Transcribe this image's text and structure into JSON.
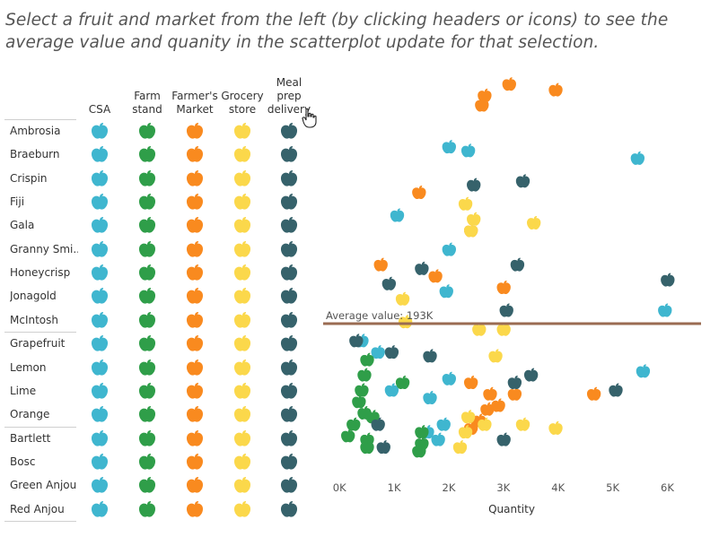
{
  "instructions": "Select a fruit and market from the left (by clicking  headers or icons) to see the average value and quanity in the scatterplot update for that selection.",
  "markets": [
    {
      "label": "CSA",
      "color": "#3fb6cf"
    },
    {
      "label": "Farm\nstand",
      "color": "#2f9e49"
    },
    {
      "label": "Farmer's\nMarket",
      "color": "#f98a1f"
    },
    {
      "label": "Grocery\nstore",
      "color": "#fbd84b"
    },
    {
      "label": "Meal\nprep\ndelivery",
      "color": "#36626b"
    }
  ],
  "fruits": [
    "Ambrosia",
    "Braeburn",
    "Crispin",
    "Fiji",
    "Gala",
    "Granny Smi..",
    "Honeycrisp",
    "Jonagold",
    "McIntosh",
    "Grapefruit",
    "Lemon",
    "Lime",
    "Orange",
    "Bartlett",
    "Bosc",
    "Green Anjou",
    "Red Anjou"
  ],
  "chart_data": {
    "type": "scatter",
    "xlabel": "Quantity",
    "x_ticks": [
      "0K",
      "1K",
      "2K",
      "3K",
      "4K",
      "5K",
      "6K"
    ],
    "xlim": [
      -250,
      6600
    ],
    "ylim": [
      0,
      1
    ],
    "reference_line": {
      "label": "Average value: 193K",
      "color": "#9a6b52"
    },
    "series": [
      {
        "color": "#f98a1f",
        "points": [
          [
            2650,
            0.955
          ],
          [
            3100,
            0.985
          ],
          [
            3950,
            0.97
          ],
          [
            2600,
            0.93
          ],
          [
            1450,
            0.7
          ],
          [
            2400,
            0.6
          ],
          [
            750,
            0.51
          ],
          [
            1750,
            0.48
          ],
          [
            3000,
            0.45
          ],
          [
            2400,
            0.2
          ],
          [
            2750,
            0.17
          ],
          [
            3200,
            0.17
          ],
          [
            4650,
            0.17
          ],
          [
            2900,
            0.14
          ],
          [
            2700,
            0.13
          ],
          [
            2550,
            0.1
          ],
          [
            2400,
            0.08
          ]
        ]
      },
      {
        "color": "#3fb6cf",
        "points": [
          [
            2000,
            0.82
          ],
          [
            2350,
            0.81
          ],
          [
            5450,
            0.79
          ],
          [
            1050,
            0.64
          ],
          [
            2000,
            0.55
          ],
          [
            1950,
            0.44
          ],
          [
            950,
            0.18
          ],
          [
            1650,
            0.16
          ],
          [
            1900,
            0.09
          ],
          [
            1800,
            0.05
          ],
          [
            1600,
            0.07
          ],
          [
            5950,
            0.39
          ],
          [
            5550,
            0.23
          ],
          [
            400,
            0.31
          ],
          [
            2000,
            0.21
          ],
          [
            700,
            0.28
          ]
        ]
      },
      {
        "color": "#2f9e49",
        "points": [
          [
            500,
            0.26
          ],
          [
            450,
            0.22
          ],
          [
            400,
            0.18
          ],
          [
            350,
            0.15
          ],
          [
            450,
            0.12
          ],
          [
            250,
            0.09
          ],
          [
            500,
            0.05
          ],
          [
            500,
            0.03
          ],
          [
            1500,
            0.07
          ],
          [
            1500,
            0.04
          ],
          [
            1450,
            0.02
          ],
          [
            1150,
            0.2
          ],
          [
            150,
            0.06
          ],
          [
            600,
            0.11
          ]
        ]
      },
      {
        "color": "#fbd84b",
        "points": [
          [
            2300,
            0.67
          ],
          [
            2450,
            0.63
          ],
          [
            2400,
            0.6
          ],
          [
            3550,
            0.62
          ],
          [
            1150,
            0.42
          ],
          [
            2550,
            0.34
          ],
          [
            3000,
            0.34
          ],
          [
            2850,
            0.27
          ],
          [
            2350,
            0.11
          ],
          [
            2300,
            0.07
          ],
          [
            2650,
            0.09
          ],
          [
            3950,
            0.08
          ],
          [
            3350,
            0.09
          ],
          [
            2200,
            0.03
          ],
          [
            1200,
            0.36
          ]
        ]
      },
      {
        "color": "#36626b",
        "points": [
          [
            2450,
            0.72
          ],
          [
            3350,
            0.73
          ],
          [
            3250,
            0.51
          ],
          [
            6000,
            0.47
          ],
          [
            900,
            0.46
          ],
          [
            3050,
            0.39
          ],
          [
            950,
            0.28
          ],
          [
            1650,
            0.27
          ],
          [
            3500,
            0.22
          ],
          [
            3200,
            0.2
          ],
          [
            5050,
            0.18
          ],
          [
            3000,
            0.05
          ],
          [
            700,
            0.09
          ],
          [
            300,
            0.31
          ],
          [
            800,
            0.03
          ],
          [
            1500,
            0.5
          ]
        ]
      }
    ]
  },
  "icon_names": {
    "fruit": "fruit-icon",
    "cursor": "hand-cursor-icon"
  }
}
